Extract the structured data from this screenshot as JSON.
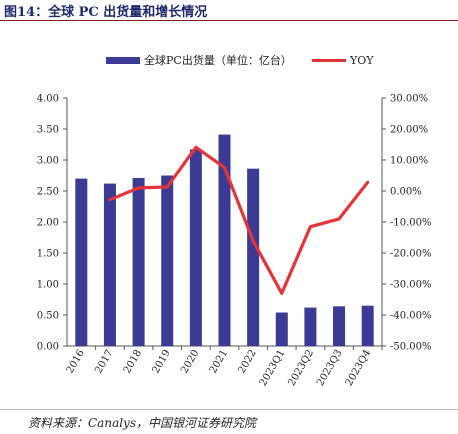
{
  "figure": {
    "title": "图14：全球 PC 出货量和增长情况",
    "source": "资料来源：Canalys，中国银河证券研究院"
  },
  "chart_data": {
    "type": "bar",
    "title": "",
    "xlabel": "",
    "ylabel": "",
    "categories": [
      "2016",
      "2017",
      "2018",
      "2019",
      "2020",
      "2021",
      "2022",
      "2023Q1",
      "2023Q2",
      "2023Q3",
      "2023Q4"
    ],
    "series": [
      {
        "name": "全球PC出货量（单位：亿台）",
        "type": "bar",
        "axis": "left",
        "color": "#3b3a94",
        "values": [
          2.7,
          2.62,
          2.71,
          2.75,
          3.17,
          3.41,
          2.86,
          0.54,
          0.62,
          0.64,
          0.65
        ]
      },
      {
        "name": "YOY",
        "type": "line",
        "axis": "right",
        "color": "#e5333a",
        "values": [
          null,
          -2.8,
          1.0,
          1.3,
          14.1,
          7.6,
          -16.1,
          -33.0,
          -11.5,
          -9.0,
          2.8
        ]
      }
    ],
    "left_axis": {
      "min": 0,
      "max": 4,
      "step": 0.5,
      "ticks": [
        "0.00",
        "0.50",
        "1.00",
        "1.50",
        "2.00",
        "2.50",
        "3.00",
        "3.50",
        "4.00"
      ]
    },
    "right_axis": {
      "min": -50,
      "max": 30,
      "step": 10,
      "ticks": [
        "-50.00%",
        "-40.00%",
        "-30.00%",
        "-20.00%",
        "-10.00%",
        "0.00%",
        "10.00%",
        "20.00%",
        "30.00%"
      ]
    },
    "grid": false,
    "legend_position": "top"
  }
}
